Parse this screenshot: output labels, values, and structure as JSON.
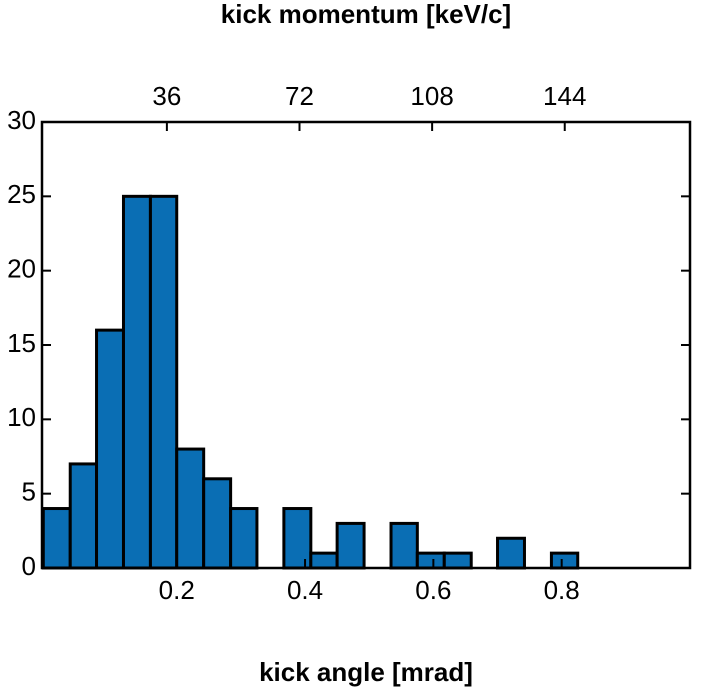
{
  "chart_data": {
    "type": "histogram",
    "xlabel": "kick angle [mrad]",
    "x2label": "kick momentum [keV/c]",
    "bins": [
      -0.008,
      0.034,
      0.075,
      0.117,
      0.159,
      0.2,
      0.242,
      0.284,
      0.325,
      0.367,
      0.409,
      0.45,
      0.492,
      0.534,
      0.575,
      0.617,
      0.659,
      0.7,
      0.742,
      0.784,
      0.825
    ],
    "values": [
      4,
      7,
      16,
      25,
      25,
      8,
      6,
      4,
      0,
      4,
      1,
      3,
      0,
      3,
      1,
      1,
      0,
      2,
      0,
      1
    ],
    "color": "#0a6eb4",
    "xlim": [
      -0.01,
      1.0
    ],
    "xticks": [
      0.2,
      0.4,
      0.6,
      0.8
    ],
    "x2lim": [
      2.1,
      178
    ],
    "x2ticks": [
      36,
      72,
      108,
      144
    ],
    "ylim": [
      0,
      30
    ],
    "yticks": [
      0,
      5,
      10,
      15,
      20,
      25,
      30
    ]
  }
}
